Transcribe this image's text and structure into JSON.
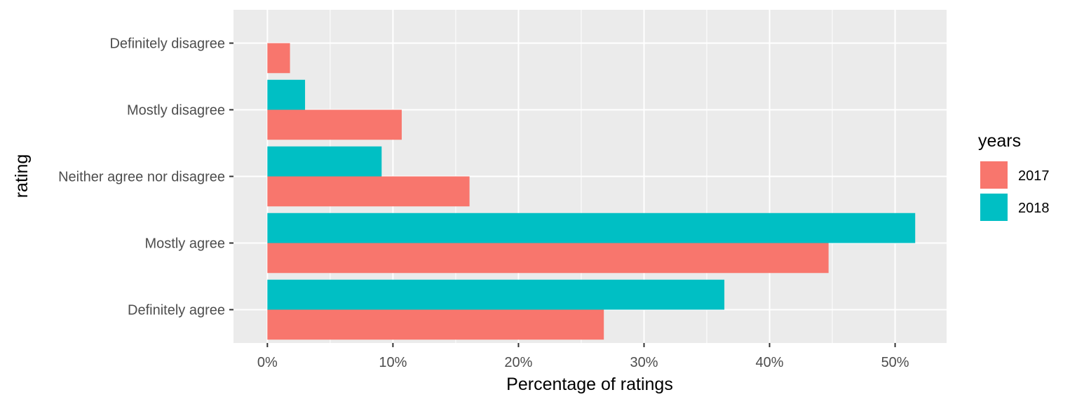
{
  "chart_data": {
    "type": "bar",
    "orientation": "horizontal",
    "categories": [
      "Definitely disagree",
      "Mostly disagree",
      "Neither agree nor disagree",
      "Mostly agree",
      "Definitely agree"
    ],
    "series": [
      {
        "name": "2017",
        "color": "#F8766D",
        "values": [
          1.8,
          10.7,
          16.1,
          44.7,
          26.8
        ]
      },
      {
        "name": "2018",
        "color": "#00BFC4",
        "values": [
          0,
          3.0,
          9.1,
          51.6,
          36.4
        ]
      }
    ],
    "xlabel": "Percentage of ratings",
    "ylabel": "rating",
    "xlim": [
      -2.7,
      54.1
    ],
    "xticks": [
      0,
      10,
      20,
      30,
      40,
      50
    ],
    "xtick_labels": [
      "0%",
      "10%",
      "20%",
      "30%",
      "40%",
      "50%"
    ],
    "legend": {
      "title": "years",
      "position": "right",
      "entries": [
        "2017",
        "2018"
      ]
    },
    "panel_background": "#EBEBEB",
    "grid": true
  }
}
